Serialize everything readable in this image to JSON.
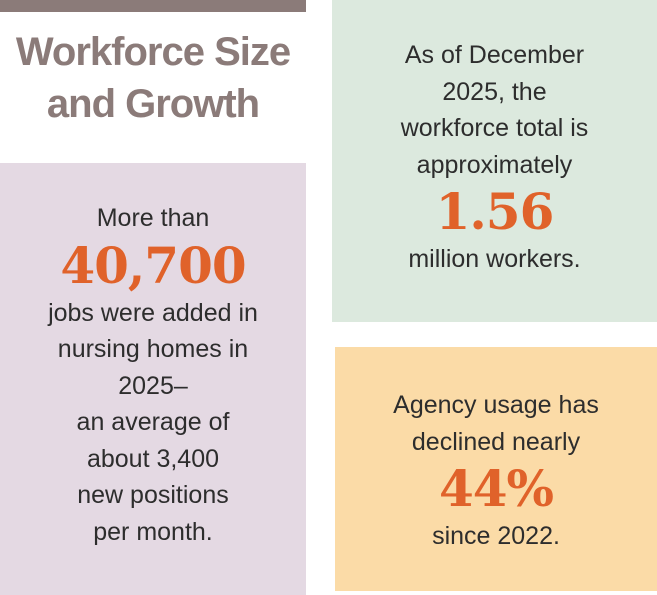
{
  "header": {
    "title_line1": "Workforce Size",
    "title_line2": "and Growth"
  },
  "jobs_card": {
    "intro": "More than",
    "stat": "40,700",
    "lines": [
      "jobs were added in",
      "nursing homes in",
      "2025–",
      "an average of",
      "about 3,400",
      "new positions",
      "per month."
    ]
  },
  "workforce_card": {
    "lines": [
      "As of December",
      "2025, the",
      "workforce total is",
      "approximately"
    ],
    "stat": "1.56",
    "outro": "million workers."
  },
  "agency_card": {
    "lines": [
      "Agency usage has",
      "declined nearly"
    ],
    "stat": "44%",
    "outro": "since 2022."
  },
  "colors": {
    "title": "#8b7b79",
    "accent": "#e0622a",
    "jobs_bg": "#e4d9e3",
    "workforce_bg": "#dce9de",
    "agency_bg": "#fbdba7",
    "body_text": "#2d2d2d"
  }
}
